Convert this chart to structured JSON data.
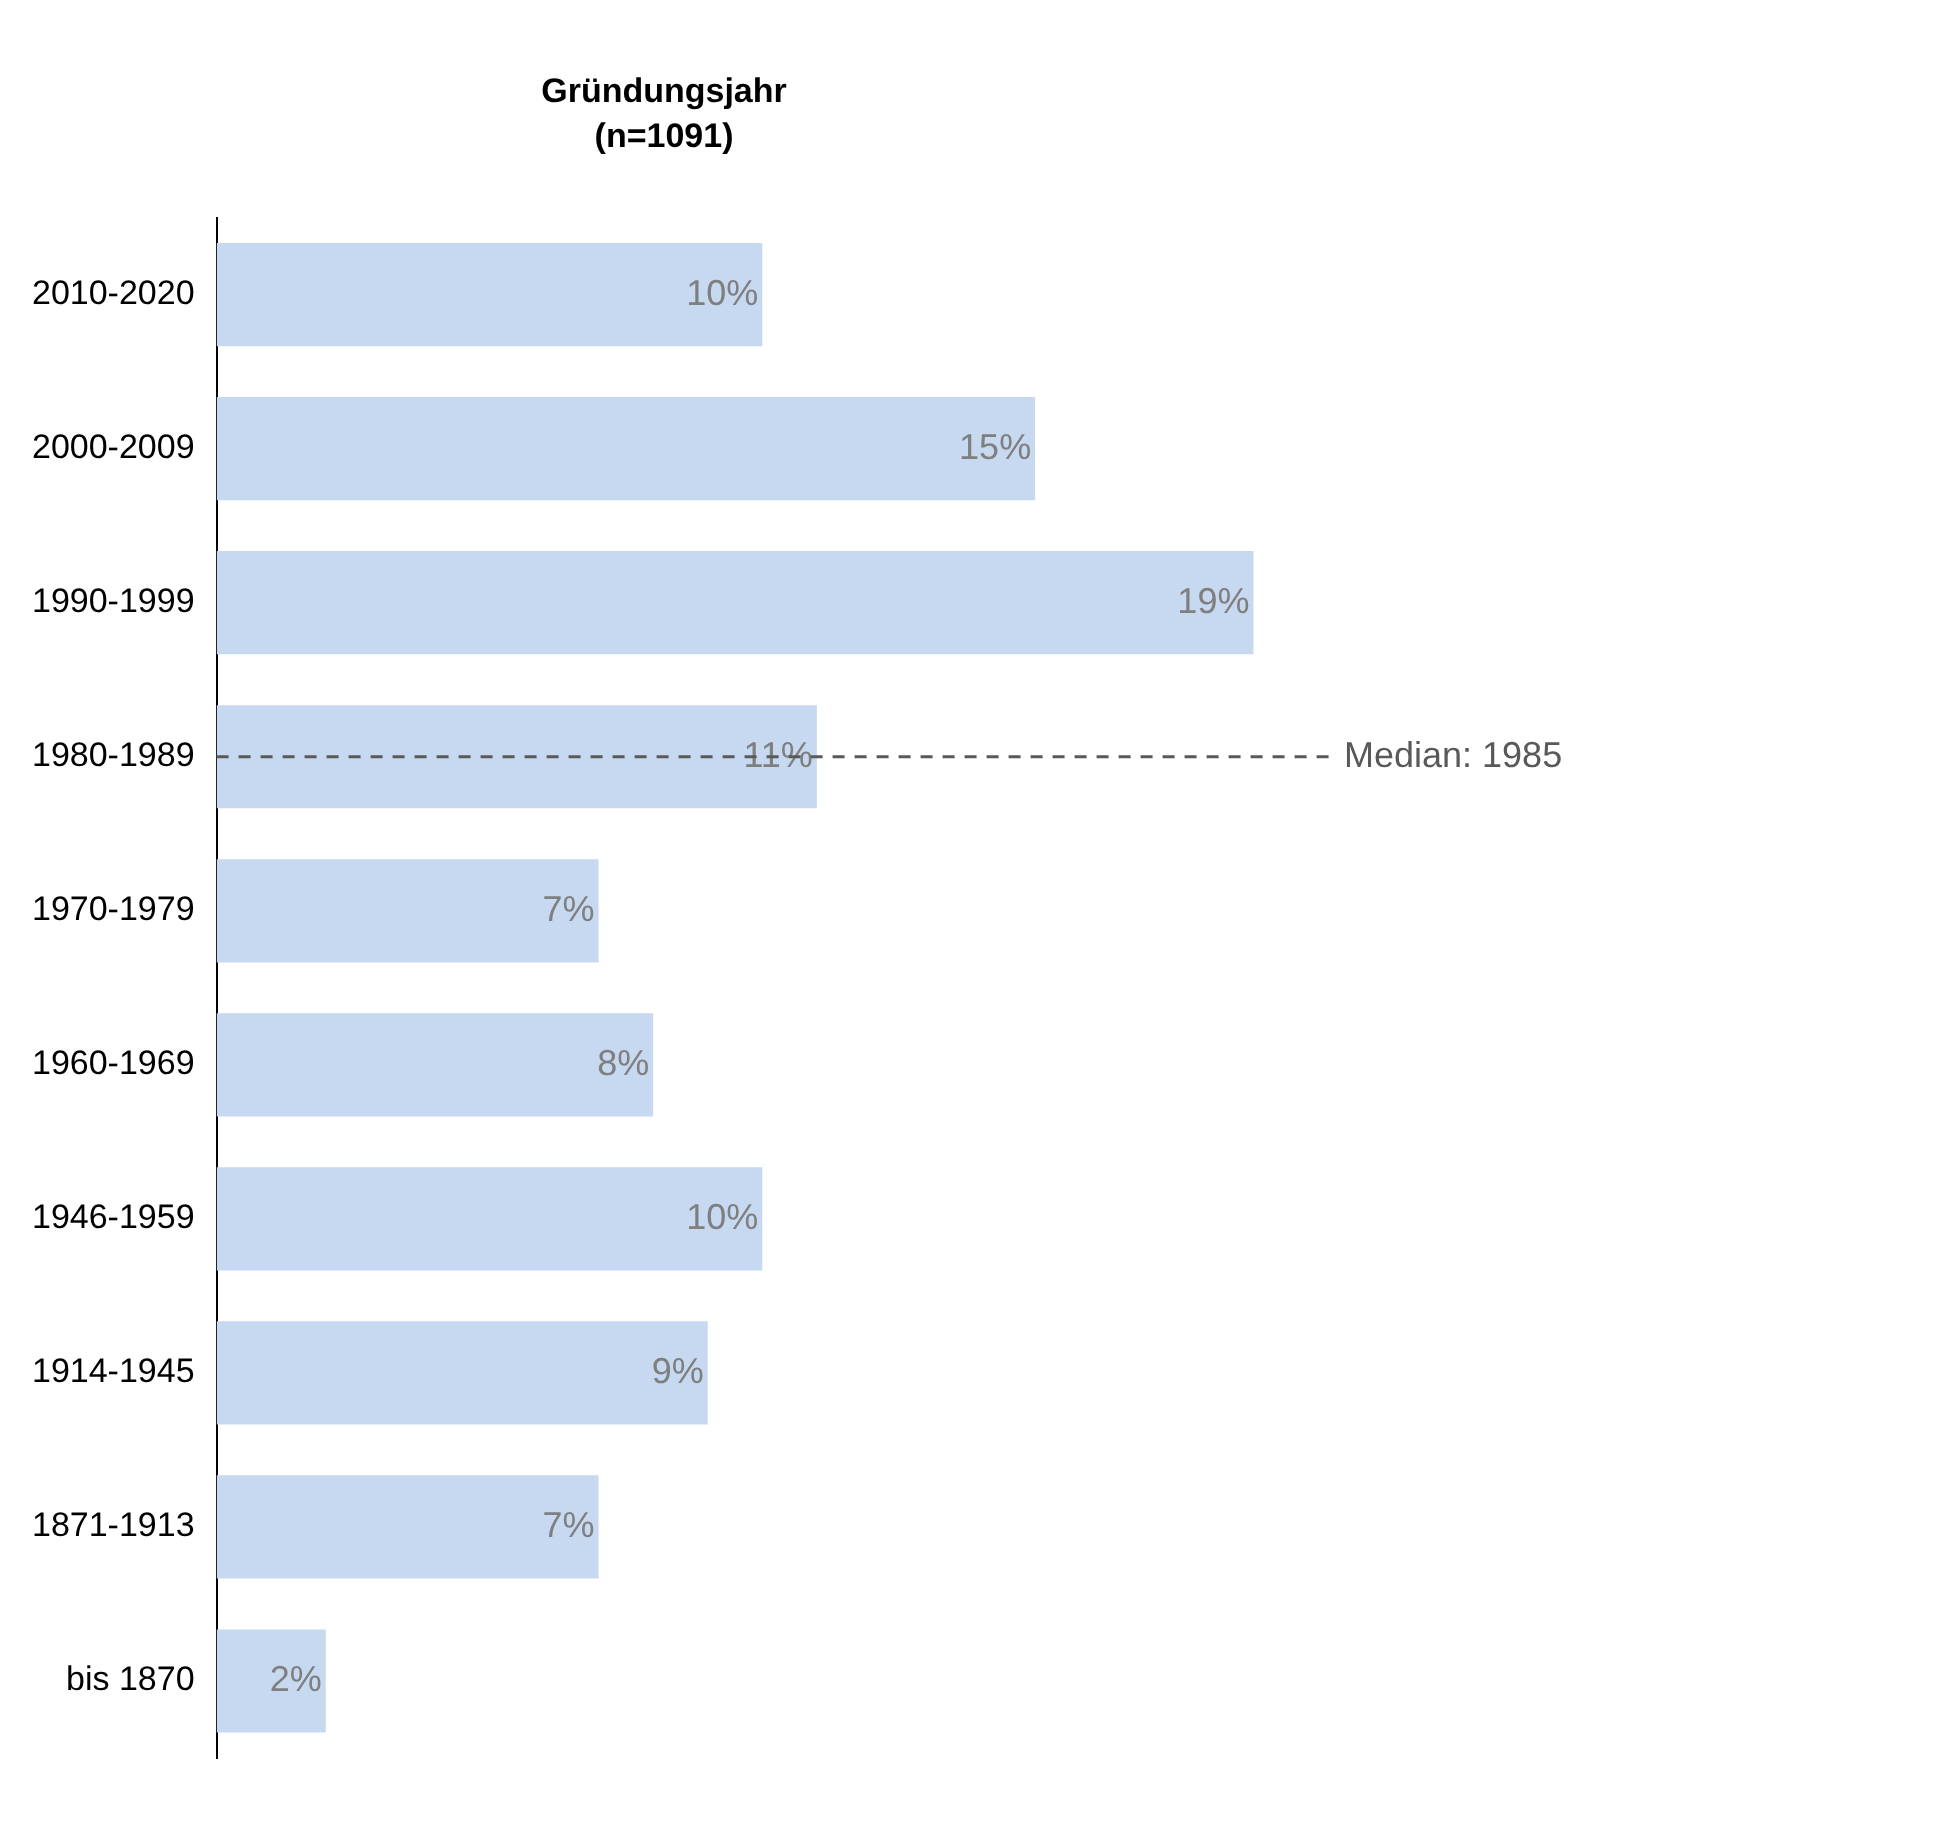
{
  "chart_data": {
    "type": "bar",
    "orientation": "horizontal",
    "title": "Gründungsjahr",
    "subtitle": "(n=1091)",
    "categories": [
      "2010-2020",
      "2000-2009",
      "1990-1999",
      "1980-1989",
      "1970-1979",
      "1960-1969",
      "1946-1959",
      "1914-1945",
      "1871-1913",
      "bis 1870"
    ],
    "series": [
      {
        "color": "#c6d9f0",
        "values": [
          10,
          15,
          19,
          11,
          7,
          8,
          10,
          9,
          7,
          2
        ],
        "value_labels": [
          "10%",
          "15%",
          "19%",
          "11%",
          "7%",
          "8%",
          "10%",
          "9%",
          "7%",
          "2%"
        ]
      }
    ],
    "ref_lines": [
      {
        "axis": "y",
        "value": "1980-1989",
        "label": "Median: 1985",
        "line_style": "dashed",
        "color": "#595959"
      }
    ],
    "grid": false,
    "legend": false
  }
}
